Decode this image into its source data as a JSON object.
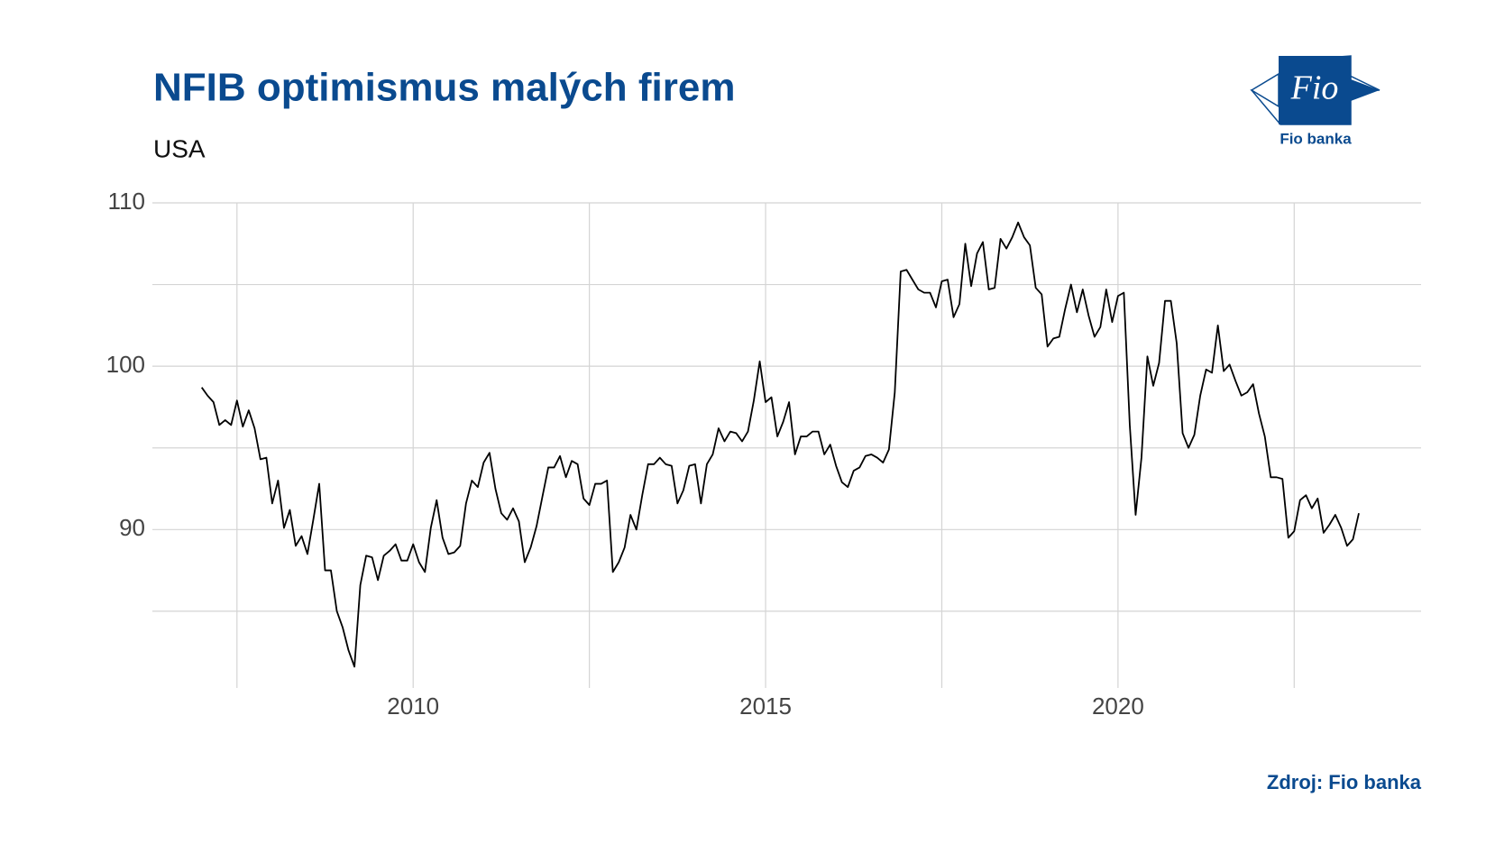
{
  "chart_data": {
    "type": "line",
    "title": "NFIB optimismus malých firem",
    "subtitle": "USA",
    "source": "Zdroj: Fio banka",
    "logo_text": "Fio",
    "logo_caption": "Fio banka",
    "color": "#000000",
    "grid": true,
    "xlim": [
      2006.3,
      2024.3
    ],
    "xticks": [
      2010,
      2015,
      2020
    ],
    "xminor": [
      2007.5,
      2012.5,
      2017.5,
      2022.5
    ],
    "ylim": [
      80.3,
      110
    ],
    "yticks": [
      90,
      100,
      110
    ],
    "yminor": [
      85,
      95,
      105
    ],
    "x": [
      2007,
      2007.083,
      2007.167,
      2007.25,
      2007.333,
      2007.417,
      2007.5,
      2007.583,
      2007.667,
      2007.75,
      2007.833,
      2007.917,
      2008,
      2008.083,
      2008.167,
      2008.25,
      2008.333,
      2008.417,
      2008.5,
      2008.583,
      2008.667,
      2008.75,
      2008.833,
      2008.917,
      2009,
      2009.083,
      2009.167,
      2009.25,
      2009.333,
      2009.417,
      2009.5,
      2009.583,
      2009.667,
      2009.75,
      2009.833,
      2009.917,
      2010,
      2010.083,
      2010.167,
      2010.25,
      2010.333,
      2010.417,
      2010.5,
      2010.583,
      2010.667,
      2010.75,
      2010.833,
      2010.917,
      2011,
      2011.083,
      2011.167,
      2011.25,
      2011.333,
      2011.417,
      2011.5,
      2011.583,
      2011.667,
      2011.75,
      2011.833,
      2011.917,
      2012,
      2012.083,
      2012.167,
      2012.25,
      2012.333,
      2012.417,
      2012.5,
      2012.583,
      2012.667,
      2012.75,
      2012.833,
      2012.917,
      2013,
      2013.083,
      2013.167,
      2013.25,
      2013.333,
      2013.417,
      2013.5,
      2013.583,
      2013.667,
      2013.75,
      2013.833,
      2013.917,
      2014,
      2014.083,
      2014.167,
      2014.25,
      2014.333,
      2014.417,
      2014.5,
      2014.583,
      2014.667,
      2014.75,
      2014.833,
      2014.917,
      2015,
      2015.083,
      2015.167,
      2015.25,
      2015.333,
      2015.417,
      2015.5,
      2015.583,
      2015.667,
      2015.75,
      2015.833,
      2015.917,
      2016,
      2016.083,
      2016.167,
      2016.25,
      2016.333,
      2016.417,
      2016.5,
      2016.583,
      2016.667,
      2016.75,
      2016.833,
      2016.917,
      2017,
      2017.083,
      2017.167,
      2017.25,
      2017.333,
      2017.417,
      2017.5,
      2017.583,
      2017.667,
      2017.75,
      2017.833,
      2017.917,
      2018,
      2018.083,
      2018.167,
      2018.25,
      2018.333,
      2018.417,
      2018.5,
      2018.583,
      2018.667,
      2018.75,
      2018.833,
      2018.917,
      2019,
      2019.083,
      2019.167,
      2019.25,
      2019.333,
      2019.417,
      2019.5,
      2019.583,
      2019.667,
      2019.75,
      2019.833,
      2019.917,
      2020,
      2020.083,
      2020.167,
      2020.25,
      2020.333,
      2020.417,
      2020.5,
      2020.583,
      2020.667,
      2020.75,
      2020.833,
      2020.917,
      2021,
      2021.083,
      2021.167,
      2021.25,
      2021.333,
      2021.417,
      2021.5,
      2021.583,
      2021.667,
      2021.75,
      2021.833,
      2021.917,
      2022,
      2022.083,
      2022.167,
      2022.25,
      2022.333,
      2022.417,
      2022.5,
      2022.583,
      2022.667,
      2022.75,
      2022.833,
      2022.917,
      2023,
      2023.083,
      2023.167,
      2023.25,
      2023.333,
      2023.417
    ],
    "values": [
      98.7,
      98.2,
      97.8,
      96.4,
      96.7,
      96.4,
      97.9,
      96.3,
      97.3,
      96.2,
      94.3,
      94.4,
      91.6,
      93.0,
      90.1,
      91.2,
      89.0,
      89.6,
      88.5,
      90.6,
      92.8,
      87.5,
      87.5,
      85.0,
      84.0,
      82.6,
      81.6,
      86.6,
      88.4,
      88.3,
      86.9,
      88.4,
      88.7,
      89.1,
      88.1,
      88.1,
      89.1,
      88.0,
      87.4,
      90.1,
      91.8,
      89.5,
      88.5,
      88.6,
      89.0,
      91.6,
      93.0,
      92.6,
      94.1,
      94.7,
      92.5,
      91.0,
      90.6,
      91.3,
      90.5,
      88.0,
      88.9,
      90.2,
      92.0,
      93.8,
      93.8,
      94.5,
      93.2,
      94.2,
      94.0,
      91.9,
      91.5,
      92.8,
      92.8,
      93.0,
      87.4,
      88.0,
      88.9,
      90.9,
      90.0,
      92.1,
      94.0,
      94.0,
      94.4,
      94.0,
      93.9,
      91.6,
      92.4,
      93.9,
      94.0,
      91.6,
      94.0,
      94.6,
      96.2,
      95.4,
      96.0,
      95.9,
      95.4,
      96.0,
      97.9,
      100.3,
      97.8,
      98.1,
      95.7,
      96.6,
      97.8,
      94.6,
      95.7,
      95.7,
      96.0,
      96.0,
      94.6,
      95.2,
      93.9,
      92.9,
      92.6,
      93.6,
      93.8,
      94.5,
      94.6,
      94.4,
      94.1,
      94.9,
      98.4,
      105.8,
      105.9,
      105.3,
      104.7,
      104.5,
      104.5,
      103.6,
      105.2,
      105.3,
      103.0,
      103.8,
      107.5,
      104.9,
      106.9,
      107.6,
      104.7,
      104.8,
      107.8,
      107.2,
      107.9,
      108.8,
      107.9,
      107.4,
      104.8,
      104.4,
      101.2,
      101.7,
      101.8,
      103.5,
      105.0,
      103.3,
      104.7,
      103.1,
      101.8,
      102.4,
      104.7,
      102.7,
      104.3,
      104.5,
      96.4,
      90.9,
      94.4,
      100.6,
      98.8,
      100.2,
      104.0,
      104.0,
      101.4,
      95.9,
      95.0,
      95.8,
      98.2,
      99.8,
      99.6,
      102.5,
      99.7,
      100.1,
      99.1,
      98.2,
      98.4,
      98.9,
      97.1,
      95.7,
      93.2,
      93.2,
      93.1,
      89.5,
      89.9,
      91.8,
      92.1,
      91.3,
      91.9,
      89.8,
      90.3,
      90.9,
      90.1,
      89.0,
      89.4,
      91.0
    ]
  }
}
